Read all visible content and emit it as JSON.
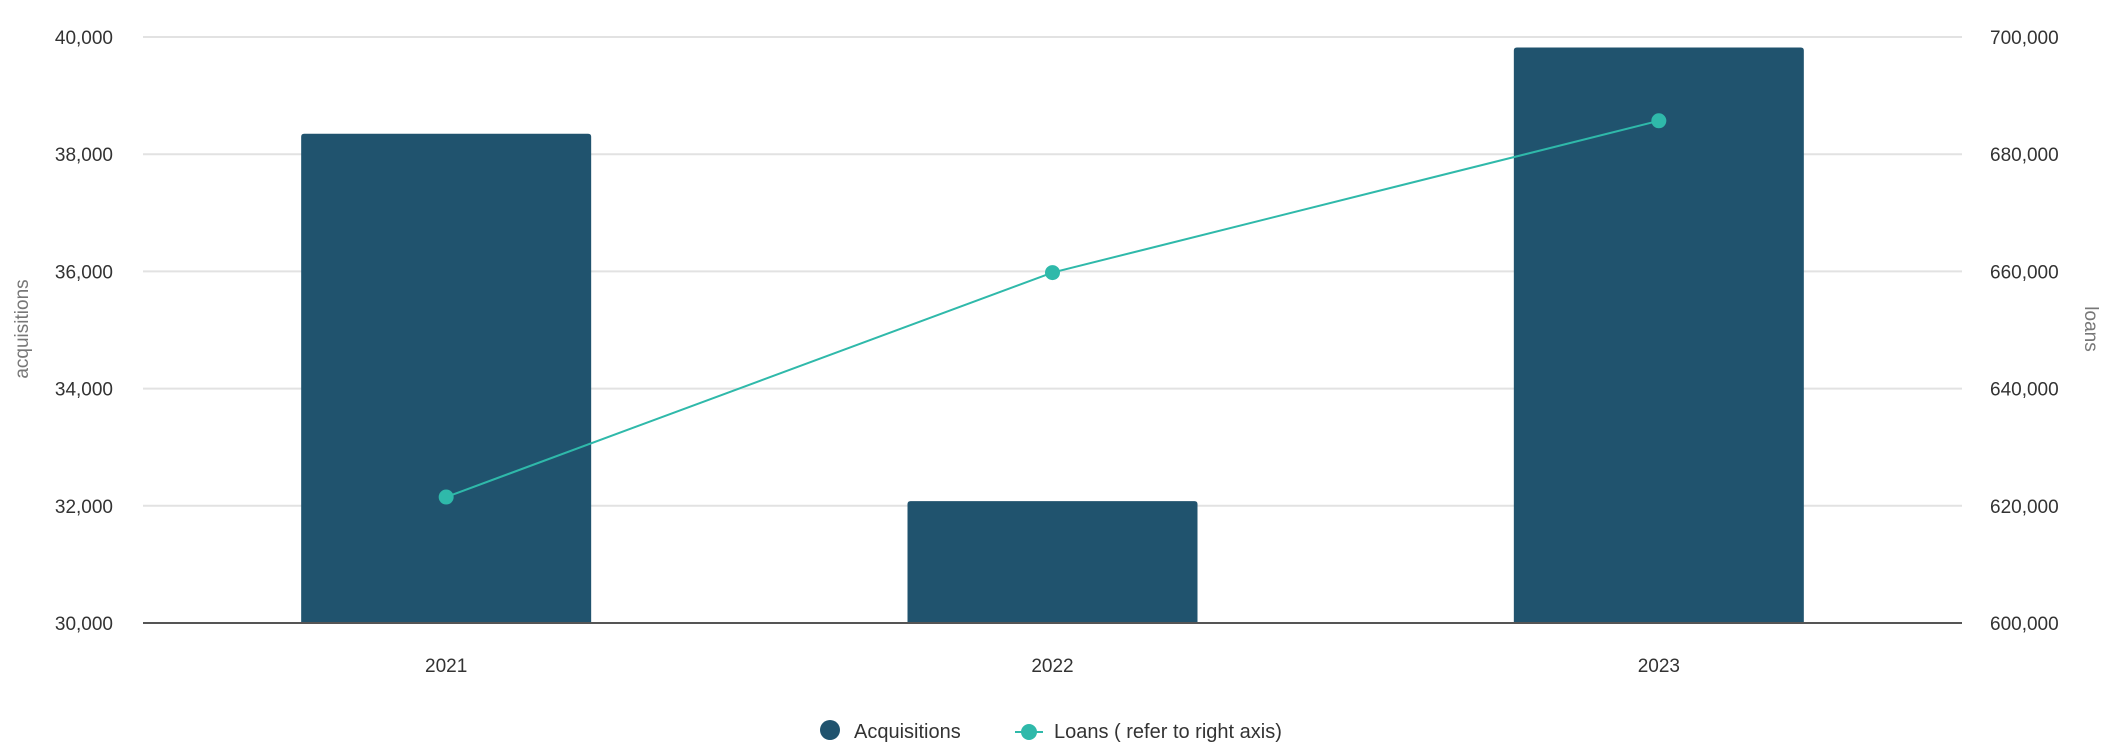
{
  "chart_data": {
    "type": "bar",
    "categories": [
      "2021",
      "2022",
      "2023"
    ],
    "series": [
      {
        "name": "Acquisitions",
        "type": "bar",
        "axis": "left",
        "color": "#20536E",
        "values": [
          38350,
          32080,
          39820
        ]
      },
      {
        "name": "Loans ( refer to right axis)",
        "type": "line",
        "axis": "right",
        "color": "#2FB9AA",
        "values": [
          621500,
          659800,
          685700
        ]
      }
    ],
    "ylabel": "acquisitions",
    "ylabel_right": "loans",
    "ylim": [
      30000,
      40000
    ],
    "ylim_right": [
      600000,
      700000
    ],
    "yticks": [
      "30,000",
      "32,000",
      "34,000",
      "36,000",
      "38,000",
      "40,000"
    ],
    "yticks_right": [
      "600,000",
      "620,000",
      "640,000",
      "660,000",
      "680,000",
      "700,000"
    ],
    "grid": true,
    "legend_position": "bottom-center"
  }
}
